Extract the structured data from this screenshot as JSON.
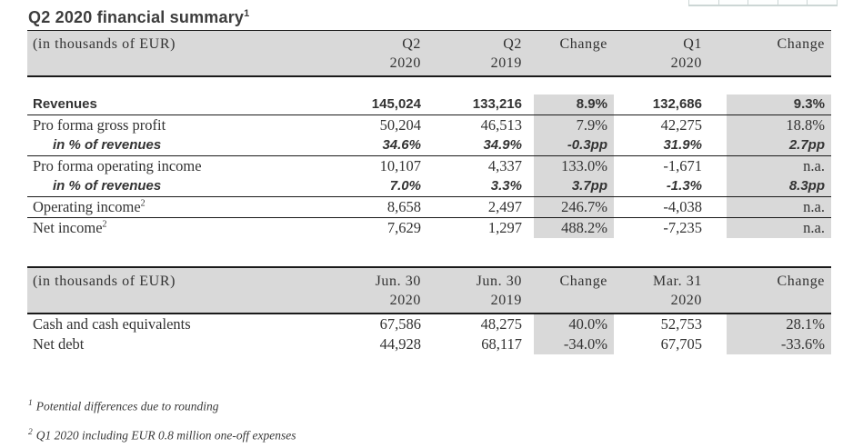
{
  "page": {
    "title": "Q2 2020 financial summary",
    "title_sup": "1"
  },
  "colors": {
    "header_bg": "#d9d9d9",
    "change_cell_bg": "#d9d9d9",
    "rule_color": "#1a1a1a",
    "text_color": "#333333",
    "top_grid_border": "#ccd6d5"
  },
  "decor": {
    "top_grid_cells": 5
  },
  "table1": {
    "unit_label": "(in thousands of EUR)",
    "columns": [
      {
        "line1": "Q2",
        "line2": "2020"
      },
      {
        "line1": "Q2",
        "line2": "2019"
      },
      {
        "line1": "Change",
        "line2": ""
      },
      {
        "line1": "Q1",
        "line2": "2020"
      },
      {
        "line1": "Change",
        "line2": ""
      }
    ],
    "rows": [
      {
        "label": "Revenues",
        "kind": "total",
        "rule": true,
        "values": [
          "145,024",
          "133,216",
          "8.9%",
          "132,686",
          "9.3%"
        ]
      },
      {
        "label": "Pro forma gross profit",
        "kind": "detail",
        "rule": false,
        "values": [
          "50,204",
          "46,513",
          "7.9%",
          "42,275",
          "18.8%"
        ]
      },
      {
        "label": "in % of revenues",
        "kind": "ratio",
        "rule": true,
        "values": [
          "34.6%",
          "34.9%",
          "-0.3pp",
          "31.9%",
          "2.7pp"
        ]
      },
      {
        "label": "Pro forma operating income",
        "kind": "detail",
        "rule": false,
        "values": [
          "10,107",
          "4,337",
          "133.0%",
          "-1,671",
          "n.a."
        ]
      },
      {
        "label": "in % of revenues",
        "kind": "ratio",
        "rule": true,
        "values": [
          "7.0%",
          "3.3%",
          "3.7pp",
          "-1.3%",
          "8.3pp"
        ]
      },
      {
        "label": "Operating income",
        "sup": "2",
        "kind": "detail",
        "rule": true,
        "values": [
          "8,658",
          "2,497",
          "246.7%",
          "-4,038",
          "n.a."
        ]
      },
      {
        "label": "Net income",
        "sup": "2",
        "kind": "detail",
        "rule": false,
        "values": [
          "7,629",
          "1,297",
          "488.2%",
          "-7,235",
          "n.a."
        ]
      }
    ]
  },
  "table2": {
    "unit_label": "(in thousands of EUR)",
    "columns": [
      {
        "line1": "Jun. 30",
        "line2": "2020"
      },
      {
        "line1": "Jun. 30",
        "line2": "2019"
      },
      {
        "line1": "Change",
        "line2": ""
      },
      {
        "line1": "Mar. 31",
        "line2": "2020"
      },
      {
        "line1": "Change",
        "line2": ""
      }
    ],
    "rows": [
      {
        "label": "Cash and cash equivalents",
        "kind": "detail",
        "rule": false,
        "values": [
          "67,586",
          "48,275",
          "40.0%",
          "52,753",
          "28.1%"
        ]
      },
      {
        "label": "Net debt",
        "kind": "detail",
        "rule": false,
        "values": [
          "44,928",
          "68,117",
          "-34.0%",
          "67,705",
          "-33.6%"
        ]
      }
    ]
  },
  "footnotes": [
    {
      "marker": "1",
      "text": "Potential differences due to rounding"
    },
    {
      "marker": "2",
      "text": "Q1 2020 including EUR 0.8 million one-off expenses"
    }
  ]
}
